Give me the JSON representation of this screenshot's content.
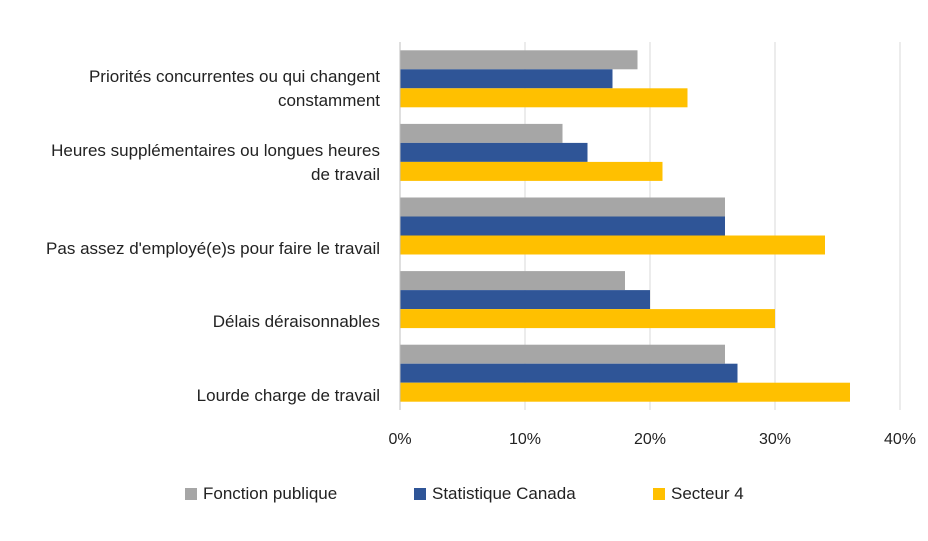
{
  "chart_data": {
    "type": "bar",
    "orientation": "horizontal",
    "title": "",
    "xlabel": "",
    "ylabel": "",
    "xlim": [
      0,
      40
    ],
    "x_ticks": [
      "0%",
      "10%",
      "20%",
      "30%",
      "40%"
    ],
    "grid": true,
    "legend_position": "bottom",
    "categories": [
      {
        "lines": [
          "Priorités concurrentes ou qui changent",
          "constamment"
        ]
      },
      {
        "lines": [
          "Heures supplémentaires ou longues heures",
          "de travail"
        ]
      },
      {
        "lines": [
          "Pas assez d'employé(e)s pour faire le travail"
        ]
      },
      {
        "lines": [
          "Délais déraisonnables"
        ]
      },
      {
        "lines": [
          "Lourde charge de travail"
        ]
      }
    ],
    "series": [
      {
        "name": "Fonction publique",
        "color": "#a6a6a6",
        "values": [
          19,
          13,
          26,
          18,
          26
        ]
      },
      {
        "name": "Statistique Canada",
        "color": "#2f5597",
        "values": [
          17,
          15,
          26,
          20,
          27
        ]
      },
      {
        "name": "Secteur 4",
        "color": "#ffc000",
        "values": [
          23,
          21,
          34,
          30,
          36
        ]
      }
    ]
  }
}
